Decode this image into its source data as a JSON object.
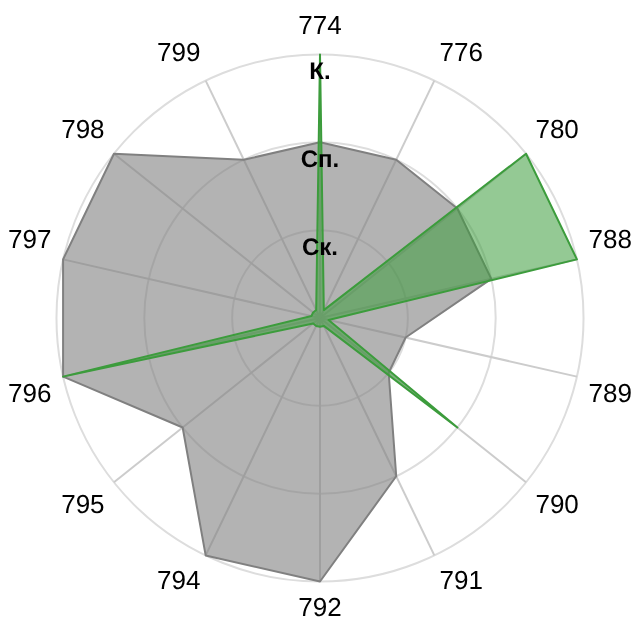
{
  "chart_data": {
    "type": "radar",
    "categories": [
      "774",
      "776",
      "780",
      "788",
      "789",
      "790",
      "791",
      "792",
      "794",
      "795",
      "796",
      "797",
      "798",
      "799"
    ],
    "series": [
      {
        "color": "#3c9c3c",
        "values": [
          3,
          0.1,
          3,
          3,
          0.1,
          2,
          0.1,
          0.1,
          0.1,
          0.1,
          3,
          0.1,
          0.1,
          0.1
        ]
      },
      {
        "color": "#808080",
        "values": [
          2,
          2,
          2,
          2,
          1,
          1,
          2,
          3,
          3,
          2,
          3,
          3,
          3,
          2
        ]
      }
    ],
    "ylim": [
      0,
      3
    ],
    "yticks": [
      {
        "value": 1,
        "label": "Ск."
      },
      {
        "value": 2,
        "label": "Сп."
      },
      {
        "value": 3,
        "label": "К."
      }
    ],
    "grid": true,
    "legend": false,
    "marker": "none"
  }
}
